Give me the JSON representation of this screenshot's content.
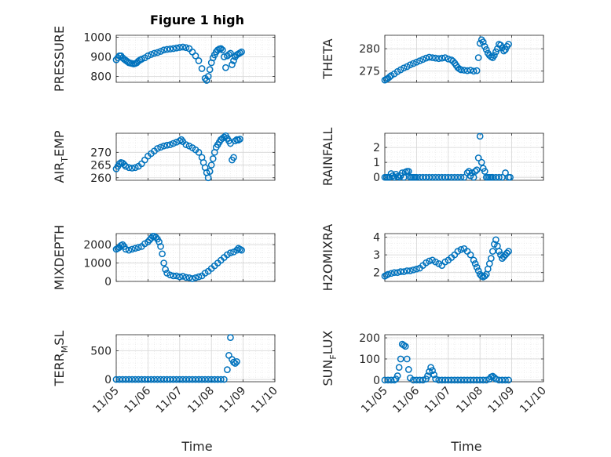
{
  "figure": {
    "title": "Figure 1 high",
    "xlabel": "Time",
    "marker_color": "#0072BD",
    "grid": true
  },
  "chart_data": [
    {
      "type": "scatter",
      "id": "pressure",
      "ylabel": "PRESSURE",
      "ylim": [
        770,
        1010
      ],
      "yticks": [
        800,
        900,
        1000
      ],
      "xlim": [
        0,
        5
      ],
      "xticks": [
        0,
        1,
        2,
        3,
        4,
        5
      ],
      "xticklabels": [
        "11/05",
        "11/06",
        "11/07",
        "11/08",
        "11/09",
        "11/10"
      ],
      "x": [
        0.0,
        0.05,
        0.1,
        0.15,
        0.2,
        0.25,
        0.3,
        0.35,
        0.4,
        0.45,
        0.5,
        0.55,
        0.6,
        0.65,
        0.7,
        0.75,
        0.8,
        0.9,
        1.0,
        1.1,
        1.2,
        1.3,
        1.4,
        1.5,
        1.6,
        1.7,
        1.8,
        1.9,
        2.0,
        2.1,
        2.2,
        2.3,
        2.4,
        2.5,
        2.6,
        2.7,
        2.8,
        2.85,
        2.9,
        2.95,
        3.0,
        3.05,
        3.1,
        3.15,
        3.2,
        3.25,
        3.3,
        3.35,
        3.4,
        3.45,
        3.5,
        3.55,
        3.6,
        3.65,
        3.7,
        3.75,
        3.8,
        3.85,
        3.9,
        3.95
      ],
      "y": [
        885,
        895,
        905,
        905,
        895,
        888,
        882,
        876,
        870,
        868,
        866,
        864,
        866,
        870,
        878,
        884,
        888,
        895,
        905,
        912,
        918,
        922,
        928,
        935,
        938,
        940,
        942,
        945,
        948,
        950,
        947,
        942,
        925,
        905,
        880,
        840,
        790,
        780,
        800,
        835,
        870,
        895,
        910,
        925,
        935,
        940,
        942,
        935,
        900,
        845,
        905,
        912,
        918,
        860,
        880,
        900,
        910,
        915,
        920,
        925
      ],
      "x_display": [
        0.0,
        0.05,
        0.1,
        0.15,
        0.2,
        0.25,
        0.3,
        0.35,
        0.4,
        0.45,
        0.5,
        0.55,
        0.6,
        0.65,
        0.7,
        0.75,
        0.8,
        0.9,
        1.0,
        1.1,
        1.2,
        1.3,
        1.4,
        1.5,
        1.6,
        1.7,
        1.8,
        1.9,
        2.0,
        2.1,
        2.2,
        2.3,
        2.4,
        2.5,
        2.6,
        2.7,
        2.8,
        2.85,
        2.9,
        2.95,
        3.0,
        3.05,
        3.1,
        3.15,
        3.2,
        3.25,
        3.3,
        3.35,
        3.4,
        3.45,
        3.5,
        3.55,
        3.6,
        3.65,
        3.7,
        3.75,
        3.8,
        3.85,
        3.9,
        3.95
      ]
    },
    {
      "type": "scatter",
      "id": "theta",
      "ylabel": "THETA",
      "ylim": [
        272.5,
        283
      ],
      "yticks": [
        275,
        280
      ],
      "xlim": [
        0,
        5
      ],
      "xticks": [
        0,
        1,
        2,
        3,
        4,
        5
      ],
      "xticklabels": [
        "11/05",
        "11/06",
        "11/07",
        "11/08",
        "11/09",
        "11/10"
      ],
      "x": [
        0.0,
        0.05,
        0.1,
        0.15,
        0.2,
        0.3,
        0.4,
        0.5,
        0.6,
        0.7,
        0.8,
        0.9,
        1.0,
        1.1,
        1.2,
        1.3,
        1.4,
        1.5,
        1.6,
        1.7,
        1.8,
        1.9,
        2.0,
        2.1,
        2.15,
        2.2,
        2.25,
        2.3,
        2.35,
        2.4,
        2.5,
        2.6,
        2.7,
        2.8,
        2.9,
        2.95,
        3.0,
        3.05,
        3.1,
        3.15,
        3.2,
        3.25,
        3.3,
        3.35,
        3.4,
        3.45,
        3.5,
        3.55,
        3.6,
        3.65,
        3.7,
        3.75,
        3.8,
        3.85,
        3.9
      ],
      "y": [
        273.0,
        273.2,
        273.4,
        273.7,
        274.0,
        274.4,
        274.9,
        275.3,
        275.7,
        276.0,
        276.4,
        276.7,
        277.0,
        277.3,
        277.6,
        277.9,
        278.1,
        278.0,
        277.9,
        277.8,
        277.9,
        278.0,
        277.7,
        277.5,
        277.2,
        276.8,
        276.3,
        275.8,
        275.5,
        275.3,
        275.2,
        275.1,
        275.2,
        275.0,
        275.1,
        278.0,
        281.2,
        282.0,
        281.5,
        280.5,
        279.8,
        279.0,
        278.5,
        278.2,
        278.0,
        278.5,
        279.3,
        280.0,
        281.0,
        280.8,
        280.2,
        279.5,
        279.8,
        280.5,
        281.0
      ]
    },
    {
      "type": "scatter",
      "id": "air_temp",
      "ylabel_main": "AIR",
      "ylabel_sub": "T",
      "ylabel_rest": "EMP",
      "ylim": [
        259,
        277.5
      ],
      "yticks": [
        260,
        265,
        270
      ],
      "xlim": [
        0,
        5
      ],
      "xticks": [
        0,
        1,
        2,
        3,
        4,
        5
      ],
      "xticklabels": [
        "11/05",
        "11/06",
        "11/07",
        "11/08",
        "11/09",
        "11/10"
      ],
      "x": [
        0.0,
        0.05,
        0.1,
        0.15,
        0.2,
        0.25,
        0.3,
        0.4,
        0.5,
        0.6,
        0.7,
        0.8,
        0.9,
        1.0,
        1.1,
        1.2,
        1.3,
        1.4,
        1.5,
        1.6,
        1.7,
        1.8,
        1.9,
        2.0,
        2.05,
        2.1,
        2.2,
        2.3,
        2.4,
        2.5,
        2.6,
        2.7,
        2.75,
        2.8,
        2.85,
        2.9,
        2.95,
        3.0,
        3.05,
        3.1,
        3.15,
        3.2,
        3.25,
        3.3,
        3.35,
        3.4,
        3.45,
        3.5,
        3.55,
        3.6,
        3.65,
        3.7,
        3.75,
        3.8,
        3.85,
        3.9
      ],
      "y": [
        263.5,
        264.5,
        265.5,
        266.0,
        265.8,
        265.2,
        264.5,
        264.0,
        263.8,
        264.0,
        264.5,
        265.5,
        267.0,
        268.5,
        269.5,
        270.5,
        271.5,
        272.0,
        272.5,
        272.8,
        273.0,
        273.5,
        274.0,
        274.5,
        275.0,
        274.2,
        273.0,
        272.5,
        271.8,
        271.0,
        270.0,
        268.0,
        266.0,
        264.0,
        262.0,
        260.0,
        262.5,
        265.0,
        267.5,
        270.0,
        272.0,
        273.0,
        274.0,
        275.0,
        275.5,
        276.0,
        276.5,
        275.5,
        274.5,
        273.5,
        267.0,
        268.0,
        274.5,
        275.0,
        274.8,
        275.2
      ]
    },
    {
      "type": "scatter",
      "id": "rainfall",
      "ylabel": "RAINFALL",
      "ylim": [
        -0.2,
        2.95
      ],
      "yticks": [
        0,
        1,
        2
      ],
      "xlim": [
        0,
        5
      ],
      "xticks": [
        0,
        1,
        2,
        3,
        4,
        5
      ],
      "xticklabels": [
        "11/05",
        "11/06",
        "11/07",
        "11/08",
        "11/09",
        "11/10"
      ],
      "x": [
        0.0,
        0.05,
        0.1,
        0.15,
        0.2,
        0.25,
        0.3,
        0.35,
        0.4,
        0.45,
        0.5,
        0.55,
        0.6,
        0.65,
        0.7,
        0.75,
        0.8,
        0.85,
        0.9,
        0.95,
        1.0,
        1.1,
        1.2,
        1.3,
        1.4,
        1.5,
        1.6,
        1.7,
        1.8,
        1.9,
        2.0,
        2.1,
        2.2,
        2.3,
        2.4,
        2.5,
        2.6,
        2.65,
        2.7,
        2.75,
        2.8,
        2.85,
        2.9,
        2.95,
        3.0,
        3.05,
        3.1,
        3.15,
        3.2,
        3.25,
        3.3,
        3.35,
        3.4,
        3.5,
        3.6,
        3.7,
        3.8,
        3.9,
        3.95
      ],
      "y": [
        0,
        0,
        0,
        0,
        0.25,
        0.1,
        0,
        0.2,
        0.05,
        0,
        0.1,
        0.3,
        0,
        0.35,
        0.4,
        0.4,
        0,
        0,
        0,
        0,
        0,
        0,
        0,
        0,
        0,
        0,
        0,
        0,
        0,
        0,
        0,
        0,
        0,
        0,
        0,
        0,
        0.3,
        0.4,
        0.1,
        0.3,
        0,
        0.4,
        0.5,
        1.3,
        2.75,
        1.0,
        0.6,
        0.4,
        0,
        0,
        0,
        0,
        0,
        0,
        0,
        0,
        0.3,
        0,
        0
      ]
    },
    {
      "type": "scatter",
      "id": "mixdepth",
      "ylabel": "MIXDEPTH",
      "ylim": [
        0,
        2600
      ],
      "yticks": [
        0,
        1000,
        2000
      ],
      "xlim": [
        0,
        5
      ],
      "xticks": [
        0,
        1,
        2,
        3,
        4,
        5
      ],
      "xticklabels": [
        "11/05",
        "11/06",
        "11/07",
        "11/08",
        "11/09",
        "11/10"
      ],
      "x": [
        0.0,
        0.05,
        0.1,
        0.15,
        0.2,
        0.25,
        0.3,
        0.4,
        0.5,
        0.6,
        0.7,
        0.8,
        0.9,
        1.0,
        1.05,
        1.1,
        1.15,
        1.2,
        1.25,
        1.3,
        1.35,
        1.4,
        1.45,
        1.5,
        1.55,
        1.6,
        1.7,
        1.8,
        1.9,
        2.0,
        2.1,
        2.2,
        2.3,
        2.4,
        2.5,
        2.6,
        2.7,
        2.8,
        2.9,
        3.0,
        3.1,
        3.2,
        3.3,
        3.4,
        3.5,
        3.6,
        3.7,
        3.8,
        3.85,
        3.9,
        3.95
      ],
      "y": [
        1750,
        1800,
        1850,
        1950,
        2000,
        1900,
        1750,
        1700,
        1750,
        1800,
        1850,
        1900,
        2050,
        2150,
        2250,
        2350,
        2450,
        2450,
        2400,
        2300,
        2150,
        1900,
        1500,
        1000,
        650,
        450,
        350,
        300,
        300,
        250,
        280,
        220,
        200,
        150,
        200,
        250,
        300,
        450,
        550,
        700,
        850,
        1000,
        1150,
        1300,
        1450,
        1550,
        1600,
        1700,
        1800,
        1750,
        1700
      ]
    },
    {
      "type": "scatter",
      "id": "h2omixra",
      "ylabel": "H2OMIXRA",
      "ylim": [
        1.5,
        4.2
      ],
      "yticks": [
        2,
        3,
        4
      ],
      "xlim": [
        0,
        5
      ],
      "xticks": [
        0,
        1,
        2,
        3,
        4,
        5
      ],
      "xticklabels": [
        "11/05",
        "11/06",
        "11/07",
        "11/08",
        "11/09",
        "11/10"
      ],
      "x": [
        0.0,
        0.05,
        0.1,
        0.2,
        0.3,
        0.4,
        0.5,
        0.6,
        0.7,
        0.8,
        0.9,
        1.0,
        1.1,
        1.2,
        1.3,
        1.4,
        1.5,
        1.6,
        1.7,
        1.8,
        1.9,
        2.0,
        2.1,
        2.2,
        2.3,
        2.4,
        2.5,
        2.6,
        2.7,
        2.8,
        2.85,
        2.9,
        2.95,
        3.0,
        3.05,
        3.1,
        3.15,
        3.2,
        3.25,
        3.3,
        3.35,
        3.4,
        3.45,
        3.5,
        3.55,
        3.6,
        3.65,
        3.7,
        3.75,
        3.8,
        3.85,
        3.9
      ],
      "y": [
        1.8,
        1.85,
        1.9,
        1.95,
        2.0,
        2.0,
        2.05,
        2.05,
        2.1,
        2.1,
        2.15,
        2.2,
        2.25,
        2.4,
        2.55,
        2.65,
        2.7,
        2.6,
        2.5,
        2.4,
        2.6,
        2.7,
        2.85,
        3.0,
        3.2,
        3.3,
        3.35,
        3.2,
        3.0,
        2.7,
        2.5,
        2.3,
        2.1,
        1.9,
        1.8,
        1.75,
        1.8,
        1.9,
        2.2,
        2.5,
        2.8,
        3.2,
        3.6,
        3.85,
        3.5,
        3.2,
        3.0,
        2.8,
        2.9,
        3.0,
        3.1,
        3.2
      ]
    },
    {
      "type": "scatter",
      "id": "terr_msl",
      "ylabel_main": "TERR",
      "ylabel_sub": "M",
      "ylabel_rest": "SL",
      "ylim": [
        -40,
        780
      ],
      "yticks": [
        0,
        500
      ],
      "xlim": [
        0,
        5
      ],
      "xticks": [
        0,
        1,
        2,
        3,
        4,
        5
      ],
      "xticklabels": [
        "11/05",
        "11/06",
        "11/07",
        "11/08",
        "11/09",
        "11/10"
      ],
      "x": [
        0.0,
        0.1,
        0.2,
        0.3,
        0.4,
        0.5,
        0.6,
        0.7,
        0.8,
        0.9,
        1.0,
        1.1,
        1.2,
        1.3,
        1.4,
        1.5,
        1.6,
        1.7,
        1.8,
        1.9,
        2.0,
        2.1,
        2.2,
        2.3,
        2.4,
        2.5,
        2.6,
        2.7,
        2.8,
        2.9,
        3.0,
        3.1,
        3.2,
        3.3,
        3.4,
        3.5,
        3.55,
        3.6,
        3.65,
        3.7,
        3.75,
        3.8
      ],
      "y": [
        0,
        0,
        0,
        0,
        0,
        0,
        0,
        0,
        0,
        0,
        0,
        0,
        0,
        0,
        0,
        0,
        0,
        0,
        0,
        0,
        0,
        0,
        0,
        0,
        0,
        0,
        0,
        0,
        0,
        0,
        0,
        0,
        0,
        0,
        0,
        170,
        420,
        730,
        350,
        300,
        280,
        310
      ]
    },
    {
      "type": "scatter",
      "id": "sun_flux",
      "ylabel_main": "SUN",
      "ylabel_sub": "F",
      "ylabel_rest": "LUX",
      "ylim": [
        -8,
        215
      ],
      "yticks": [
        0,
        100,
        200
      ],
      "xlim": [
        0,
        5
      ],
      "xticks": [
        0,
        1,
        2,
        3,
        4,
        5
      ],
      "xticklabels": [
        "11/05",
        "11/06",
        "11/07",
        "11/08",
        "11/09",
        "11/10"
      ],
      "x": [
        0.0,
        0.1,
        0.2,
        0.3,
        0.35,
        0.4,
        0.45,
        0.5,
        0.55,
        0.6,
        0.65,
        0.7,
        0.75,
        0.8,
        0.9,
        1.0,
        1.1,
        1.2,
        1.3,
        1.35,
        1.4,
        1.45,
        1.5,
        1.55,
        1.6,
        1.7,
        1.8,
        1.9,
        2.0,
        2.1,
        2.2,
        2.3,
        2.4,
        2.5,
        2.6,
        2.7,
        2.8,
        2.9,
        3.0,
        3.1,
        3.2,
        3.3,
        3.35,
        3.4,
        3.45,
        3.5,
        3.6,
        3.7,
        3.8,
        3.9
      ],
      "y": [
        0,
        0,
        0,
        0,
        5,
        20,
        60,
        100,
        170,
        165,
        160,
        100,
        50,
        10,
        0,
        0,
        0,
        0,
        5,
        20,
        40,
        60,
        45,
        25,
        5,
        0,
        0,
        0,
        0,
        0,
        0,
        0,
        0,
        0,
        0,
        0,
        0,
        0,
        0,
        0,
        0,
        5,
        15,
        18,
        12,
        5,
        0,
        0,
        0,
        0
      ]
    }
  ]
}
